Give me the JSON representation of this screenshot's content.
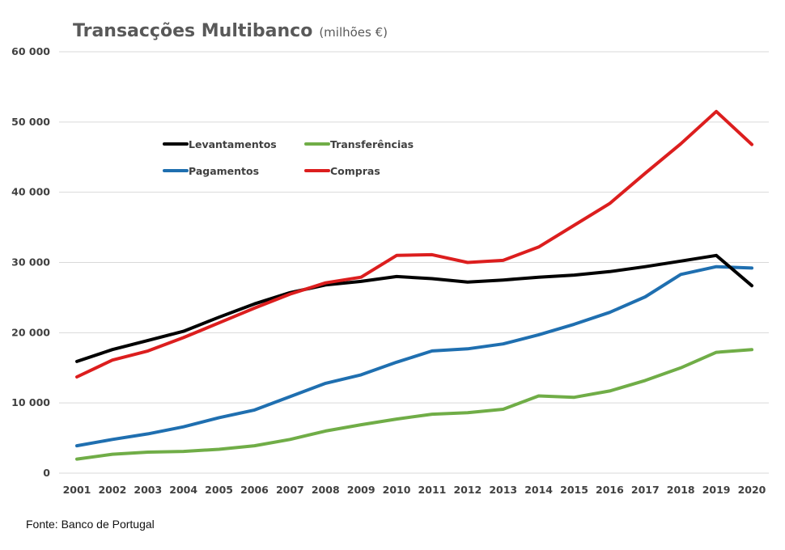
{
  "chart_data": {
    "type": "line",
    "title": "Transacções Multibanco",
    "subtitle": "(milhões €)",
    "xlabel": "",
    "ylabel": "",
    "ylim": [
      0,
      60000
    ],
    "yticks": [
      0,
      10000,
      20000,
      30000,
      40000,
      50000,
      60000
    ],
    "ytick_labels": [
      "0",
      "10 000",
      "20 000",
      "30 000",
      "40 000",
      "50 000",
      "60 000"
    ],
    "grid": true,
    "legend_position": "top-left-inside",
    "categories": [
      "2001",
      "2002",
      "2003",
      "2004",
      "2005",
      "2006",
      "2007",
      "2008",
      "2009",
      "2010",
      "2011",
      "2012",
      "2013",
      "2014",
      "2015",
      "2016",
      "2017",
      "2018",
      "2019",
      "2020"
    ],
    "series": [
      {
        "name": "Levantamentos",
        "color": "#000000",
        "values": [
          15900,
          17600,
          18900,
          20200,
          22200,
          24100,
          25700,
          26800,
          27300,
          28000,
          27700,
          27200,
          27500,
          27900,
          28200,
          28700,
          29400,
          30200,
          31000,
          26700
        ]
      },
      {
        "name": "Transferências",
        "color": "#70ad47",
        "values": [
          2000,
          2700,
          3000,
          3100,
          3400,
          3900,
          4800,
          6000,
          6900,
          7700,
          8400,
          8600,
          9100,
          11000,
          10800,
          11700,
          13200,
          15000,
          17200,
          17600
        ]
      },
      {
        "name": "Pagamentos",
        "color": "#1f6fb0",
        "values": [
          3900,
          4800,
          5600,
          6600,
          7900,
          9000,
          10900,
          12800,
          14000,
          15800,
          17400,
          17700,
          18400,
          19700,
          21200,
          22900,
          25100,
          28300,
          29400,
          29200
        ]
      },
      {
        "name": "Compras",
        "color": "#dc1e1e",
        "values": [
          13700,
          16100,
          17400,
          19300,
          21400,
          23500,
          25500,
          27100,
          27900,
          31000,
          31100,
          30000,
          30300,
          32200,
          35300,
          38400,
          42700,
          46900,
          51500,
          46800
        ]
      }
    ],
    "source": "Fonte: Banco de Portugal"
  }
}
